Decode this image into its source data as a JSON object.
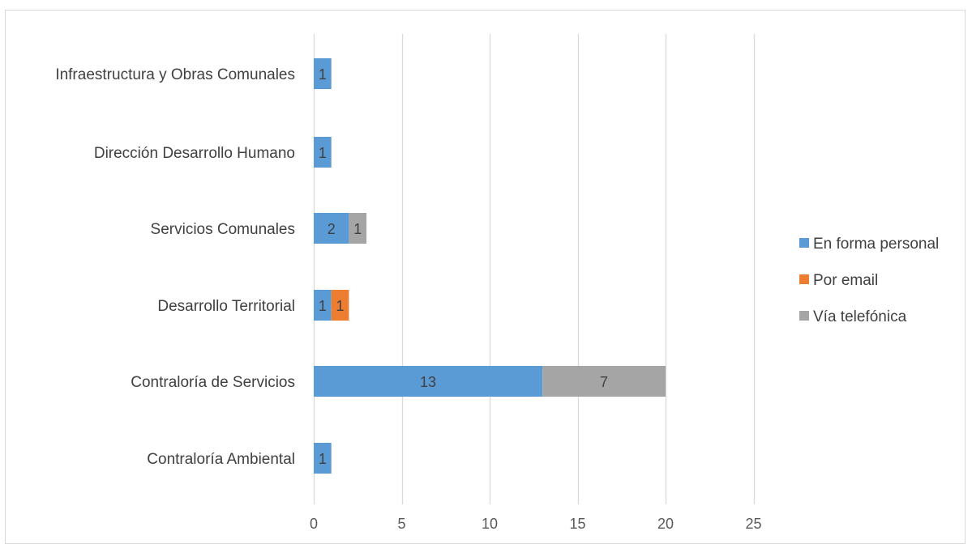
{
  "chart_data": {
    "type": "bar",
    "orientation": "horizontal",
    "stacked": true,
    "categories": [
      "Contraloría Ambiental",
      "Contraloría de Servicios",
      "Desarrollo Territorial",
      "Servicios Comunales",
      "Dirección Desarrollo Humano",
      "Infraestructura y Obras Comunales"
    ],
    "series": [
      {
        "name": "En forma personal",
        "color": "#5b9bd5",
        "values": [
          1,
          13,
          1,
          2,
          1,
          1
        ]
      },
      {
        "name": "Por email",
        "color": "#ed7d31",
        "values": [
          0,
          0,
          1,
          0,
          0,
          0
        ]
      },
      {
        "name": "Vía telefónica",
        "color": "#a5a5a5",
        "values": [
          0,
          7,
          0,
          1,
          0,
          0
        ]
      }
    ],
    "xlim": [
      0,
      25
    ],
    "xticks": [
      0,
      5,
      10,
      15,
      20,
      25
    ],
    "grid": true,
    "legend_position": "right",
    "data_labels": true
  }
}
